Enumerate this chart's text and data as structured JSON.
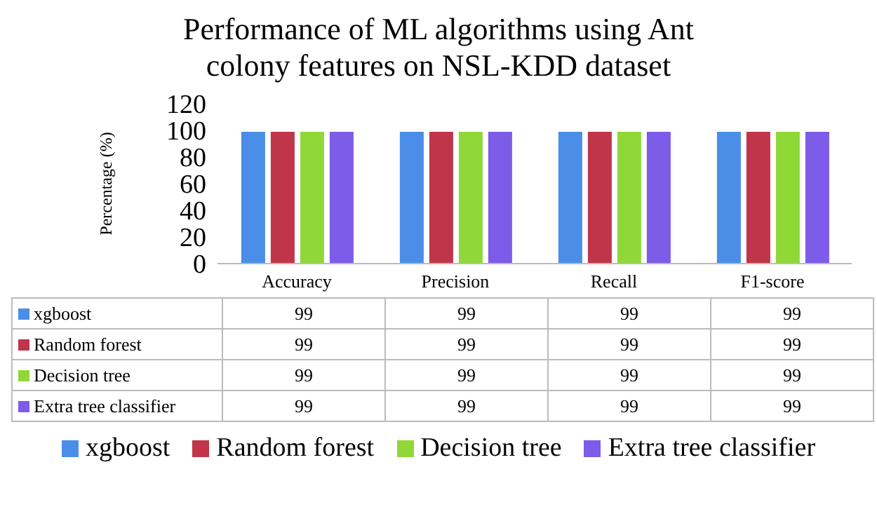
{
  "chart_data": {
    "type": "bar",
    "title": "Performance of ML algorithms using Ant colony features on NSL-KDD dataset",
    "ylabel": "Percentage (%)",
    "categories": [
      "Accuracy",
      "Precision",
      "Recall",
      "F1-score"
    ],
    "series": [
      {
        "name": "xgboost",
        "color": "#4a8ee8",
        "values": [
          99,
          99,
          99,
          99
        ]
      },
      {
        "name": "Random forest",
        "color": "#c0354a",
        "values": [
          99,
          99,
          99,
          99
        ]
      },
      {
        "name": "Decision tree",
        "color": "#90d838",
        "values": [
          99,
          99,
          99,
          99
        ]
      },
      {
        "name": "Extra tree classifier",
        "color": "#7c5ce8",
        "values": [
          99,
          99,
          99,
          99
        ]
      }
    ],
    "ylim": [
      0,
      120
    ],
    "yticks": [
      0,
      20,
      40,
      60,
      80,
      100,
      120
    ],
    "data_labels": true,
    "legend": "bottom"
  }
}
